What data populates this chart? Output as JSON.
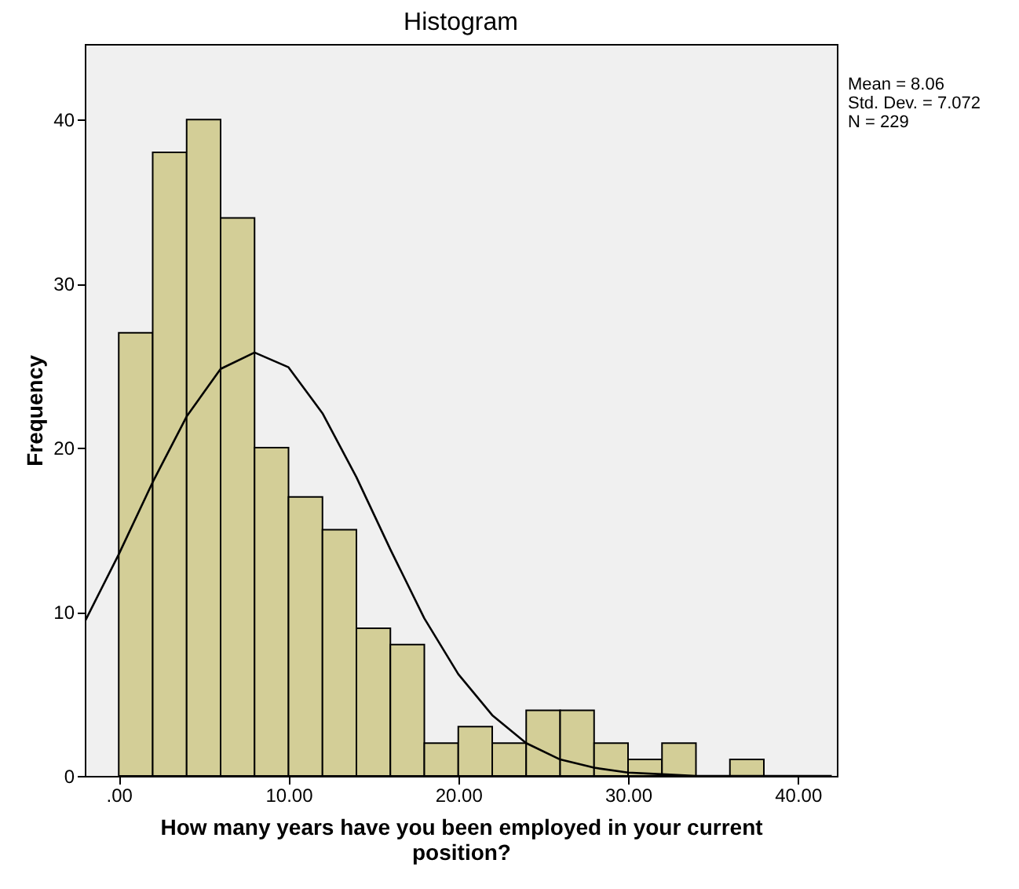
{
  "chart_data": {
    "type": "histogram",
    "title": "Histogram",
    "xlabel": "How many years have you been employed in your current position?",
    "ylabel": "Frequency",
    "bins": [
      0,
      2,
      4,
      6,
      8,
      10,
      12,
      14,
      16,
      18,
      20,
      22,
      24,
      26,
      28,
      30,
      32,
      34,
      36,
      38
    ],
    "values": [
      27,
      38,
      40,
      34,
      20,
      17,
      15,
      9,
      8,
      2,
      3,
      2,
      4,
      4,
      2,
      1,
      2,
      0,
      1
    ],
    "color": "#d3ce97",
    "series": [
      {
        "type": "line",
        "color": "#000000",
        "x": [
          -2,
          0,
          2,
          4,
          6,
          8,
          10,
          12,
          14,
          16,
          18,
          20,
          22,
          24,
          26,
          28,
          30,
          32,
          34,
          36,
          38,
          40,
          42
        ],
        "values": [
          9.4,
          13.5,
          17.9,
          21.9,
          24.8,
          25.8,
          24.9,
          22.1,
          18.2,
          13.8,
          9.6,
          6.2,
          3.7,
          2.0,
          1.0,
          0.5,
          0.2,
          0.1,
          0,
          0,
          0,
          0,
          0
        ]
      }
    ],
    "xlim": [
      -2,
      42.3
    ],
    "xticks": [
      {
        "value": 0,
        "label": ".00"
      },
      {
        "value": 10,
        "label": "10.00"
      },
      {
        "value": 20,
        "label": "20.00"
      },
      {
        "value": 30,
        "label": "30.00"
      },
      {
        "value": 40,
        "label": "40.00"
      }
    ],
    "ylim": [
      0,
      44.6
    ],
    "yticks": [
      0,
      10,
      20,
      30,
      40
    ],
    "grid": false,
    "annotations": [
      "Mean = 8.06",
      "Std. Dev. = 7.072",
      "N = 229"
    ]
  }
}
